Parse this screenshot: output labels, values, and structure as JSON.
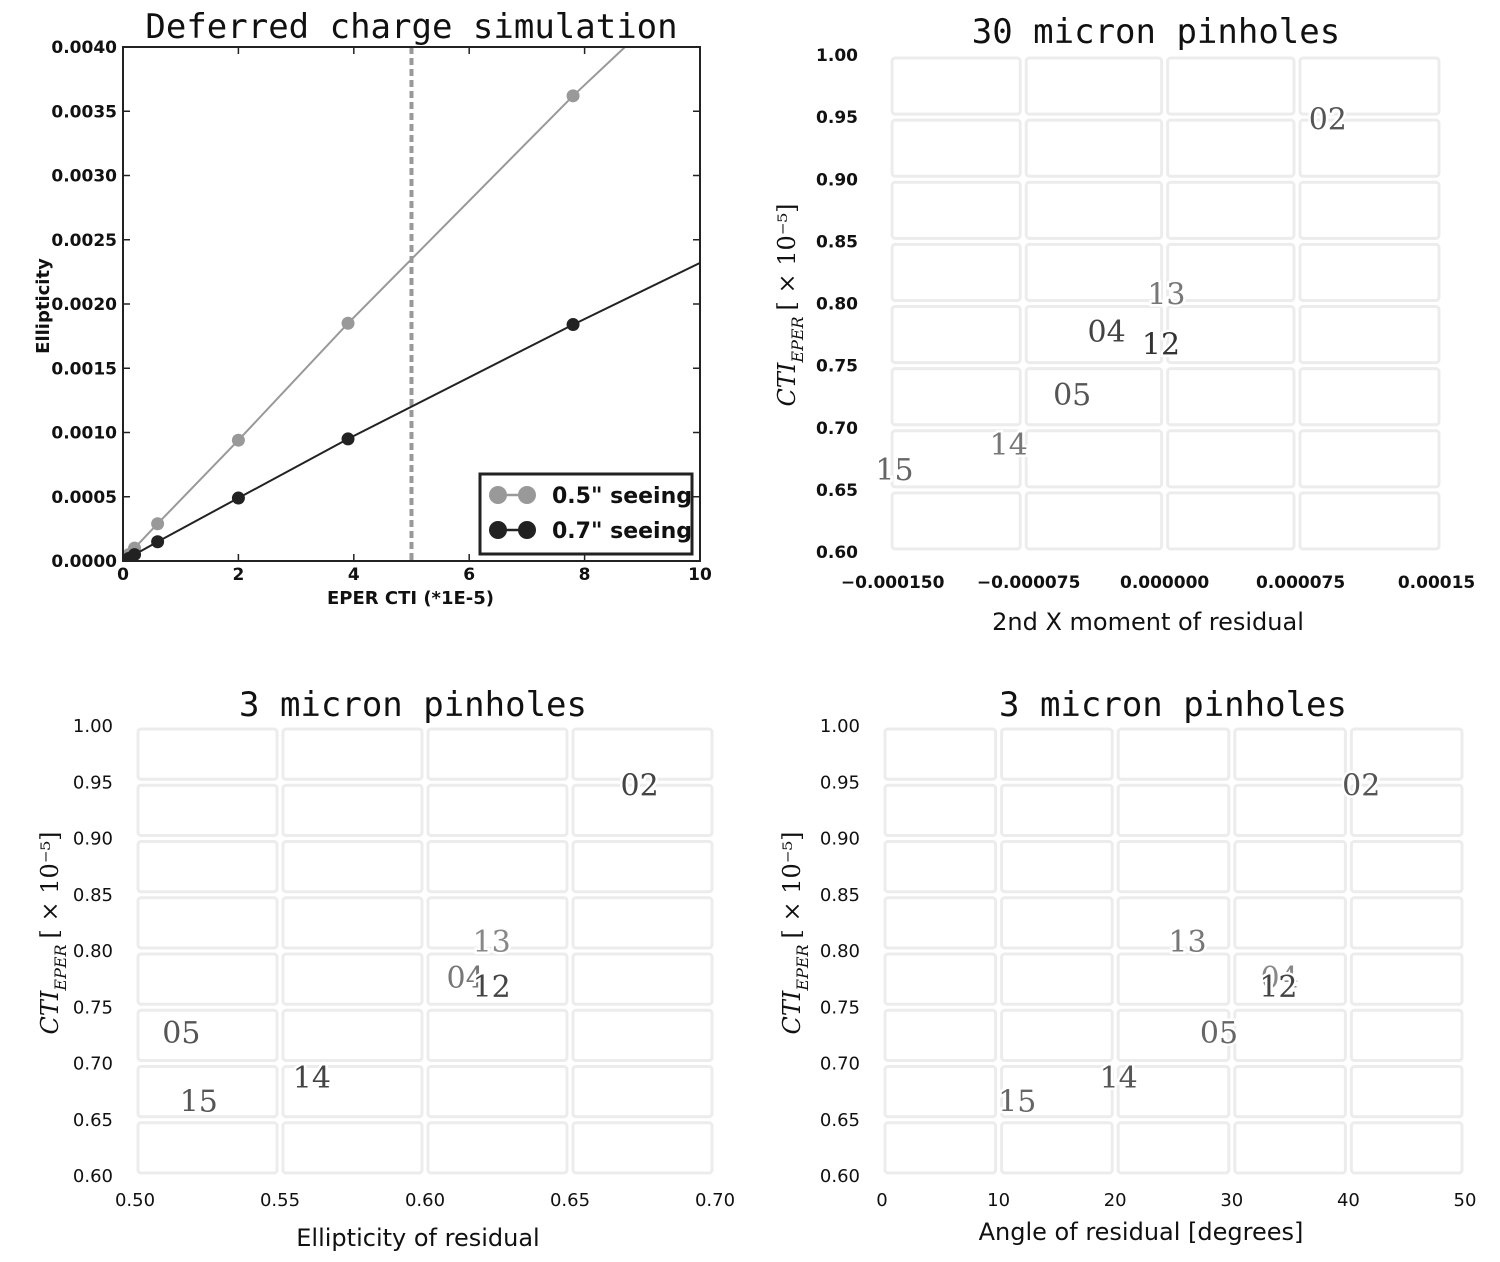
{
  "chart_data": [
    {
      "type": "line",
      "title": "Deferred charge simulation",
      "xlabel": "EPER CTI (*1E-5)",
      "ylabel": "Ellipticity",
      "xlim": [
        0,
        10
      ],
      "ylim": [
        0,
        0.004
      ],
      "xticks": [
        "0",
        "2",
        "4",
        "6",
        "8",
        "10"
      ],
      "yticks": [
        "0.0000",
        "0.0005",
        "0.0010",
        "0.0015",
        "0.0020",
        "0.0025",
        "0.0030",
        "0.0035",
        "0.0040"
      ],
      "vline": 5,
      "legend_position": "lower-right",
      "series": [
        {
          "name": "0.5\" seeing",
          "color": "#999999",
          "x": [
            0.1,
            0.2,
            0.6,
            2.0,
            3.9,
            7.8
          ],
          "y": [
            5e-05,
            0.0001,
            0.00029,
            0.00094,
            0.00185,
            0.00362
          ],
          "line_end": [
            8.7,
            0.004
          ]
        },
        {
          "name": "0.7\" seeing",
          "color": "#222222",
          "x": [
            0.1,
            0.2,
            0.6,
            2.0,
            3.9,
            7.8
          ],
          "y": [
            2e-05,
            5e-05,
            0.00015,
            0.00049,
            0.00095,
            0.00184
          ],
          "line_end": [
            10,
            0.00232
          ]
        }
      ]
    },
    {
      "type": "scatter",
      "title": "30 micron pinholes",
      "xlabel": "2nd X moment of residual",
      "ylabel": "CTI",
      "ylabel_sub": "EPER",
      "ylabel_unit": "[ × 10⁻⁵]",
      "xlim": [
        -0.000157,
        0.000153
      ],
      "ylim": [
        0.6,
        1.0
      ],
      "xticks": [
        {
          "value": -0.00015,
          "label": "−0.000150"
        },
        {
          "value": -7.5e-05,
          "label": "−0.000075"
        },
        {
          "value": 0.0,
          "label": "0.000000"
        },
        {
          "value": 7.5e-05,
          "label": "0.000075"
        },
        {
          "value": 0.00015,
          "label": "0.00015"
        }
      ],
      "yticks": [
        "0.60",
        "0.65",
        "0.70",
        "0.75",
        "0.80",
        "0.85",
        "0.90",
        "0.95",
        "1.00"
      ],
      "points": [
        {
          "label": "02",
          "x": 9e-05,
          "y": 0.949,
          "color": "#555555"
        },
        {
          "label": "13",
          "x": 1e-06,
          "y": 0.808,
          "color": "#777777"
        },
        {
          "label": "04",
          "x": -3.2e-05,
          "y": 0.778,
          "color": "#444444"
        },
        {
          "label": "12",
          "x": -2e-06,
          "y": 0.768,
          "color": "#333333"
        },
        {
          "label": "05",
          "x": -5.1e-05,
          "y": 0.727,
          "color": "#555555"
        },
        {
          "label": "14",
          "x": -8.6e-05,
          "y": 0.687,
          "color": "#777777"
        },
        {
          "label": "15",
          "x": -0.000149,
          "y": 0.667,
          "color": "#666666"
        }
      ]
    },
    {
      "type": "scatter",
      "title": "3 micron pinholes",
      "xlabel": "Ellipticity of residual",
      "ylabel": "CTI",
      "ylabel_sub": "EPER",
      "ylabel_unit": "[ × 10⁻⁵]",
      "xlim": [
        0.5,
        0.7
      ],
      "ylim": [
        0.6,
        1.0
      ],
      "xticks": [
        {
          "value": 0.5,
          "label": "0.50"
        },
        {
          "value": 0.55,
          "label": "0.55"
        },
        {
          "value": 0.6,
          "label": "0.60"
        },
        {
          "value": 0.65,
          "label": "0.65"
        },
        {
          "value": 0.7,
          "label": "0.70"
        }
      ],
      "yticks": [
        "0.60",
        "0.65",
        "0.70",
        "0.75",
        "0.80",
        "0.85",
        "0.90",
        "0.95",
        "1.00"
      ],
      "points": [
        {
          "label": "02",
          "x": 0.674,
          "y": 0.948,
          "color": "#444444"
        },
        {
          "label": "13",
          "x": 0.623,
          "y": 0.809,
          "color": "#888888"
        },
        {
          "label": "04",
          "x": 0.614,
          "y": 0.777,
          "color": "#777777"
        },
        {
          "label": "12",
          "x": 0.623,
          "y": 0.769,
          "color": "#444444"
        },
        {
          "label": "05",
          "x": 0.516,
          "y": 0.728,
          "color": "#555555"
        },
        {
          "label": "14",
          "x": 0.561,
          "y": 0.688,
          "color": "#444444"
        },
        {
          "label": "15",
          "x": 0.522,
          "y": 0.667,
          "color": "#555555"
        }
      ]
    },
    {
      "type": "scatter",
      "title": "3 micron pinholes",
      "xlabel": "Angle of residual [degrees]",
      "ylabel": "CTI",
      "ylabel_sub": "EPER",
      "ylabel_unit": "[ × 10⁻⁵]",
      "xlim": [
        0,
        50
      ],
      "ylim": [
        0.6,
        1.0
      ],
      "xticks": [
        {
          "value": 0,
          "label": "0"
        },
        {
          "value": 10,
          "label": "10"
        },
        {
          "value": 20,
          "label": "20"
        },
        {
          "value": 30,
          "label": "30"
        },
        {
          "value": 40,
          "label": "40"
        },
        {
          "value": 50,
          "label": "50"
        }
      ],
      "yticks": [
        "0.60",
        "0.65",
        "0.70",
        "0.75",
        "0.80",
        "0.85",
        "0.90",
        "0.95",
        "1.00"
      ],
      "points": [
        {
          "label": "02",
          "x": 41.1,
          "y": 0.948,
          "color": "#555555"
        },
        {
          "label": "13",
          "x": 26.2,
          "y": 0.809,
          "color": "#777777"
        },
        {
          "label": "04",
          "x": 34.1,
          "y": 0.777,
          "color": "#888888"
        },
        {
          "label": "12",
          "x": 34.0,
          "y": 0.769,
          "color": "#444444"
        },
        {
          "label": "05",
          "x": 28.9,
          "y": 0.728,
          "color": "#666666"
        },
        {
          "label": "14",
          "x": 20.3,
          "y": 0.688,
          "color": "#555555"
        },
        {
          "label": "15",
          "x": 11.6,
          "y": 0.667,
          "color": "#666666"
        }
      ]
    }
  ]
}
